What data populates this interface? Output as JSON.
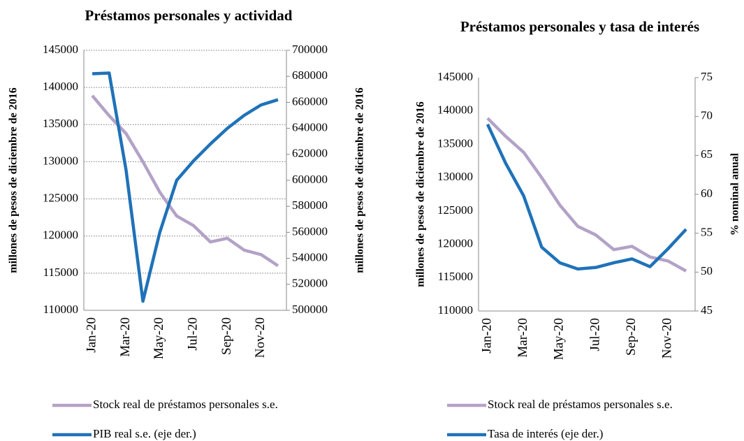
{
  "chart_data": [
    {
      "type": "line",
      "title": "Préstamos personales y actividad",
      "categories": [
        "Jan-20",
        null,
        "Mar-20",
        null,
        "May-20",
        null,
        "Jul-20",
        null,
        "Sep-20",
        null,
        "Nov-20",
        null
      ],
      "series": [
        {
          "name": "Stock real de préstamos personales s.e.",
          "color": "#b3a2c7",
          "axis": "y",
          "values": [
            138900,
            136200,
            133800,
            130000,
            125900,
            122700,
            121400,
            119200,
            119700,
            118100,
            117500,
            116000
          ]
        },
        {
          "name": "PIB real s.e. (eje der.)",
          "color": "#1f72b8",
          "axis": "y2",
          "values": [
            682000,
            682500,
            608000,
            507000,
            560000,
            600000,
            615000,
            628000,
            640000,
            650000,
            658000,
            662000
          ]
        }
      ],
      "ylabel": "millones de pesos de diciembre de 2016",
      "y2label": "millones de pesos de diciembre de 2016",
      "ylim": [
        110000,
        145000
      ],
      "yticks": [
        110000,
        115000,
        120000,
        125000,
        130000,
        135000,
        140000,
        145000
      ],
      "y2lim": [
        500000,
        700000
      ],
      "y2ticks": [
        500000,
        520000,
        540000,
        560000,
        580000,
        600000,
        620000,
        640000,
        660000,
        680000,
        700000
      ],
      "grid": true,
      "legend": "bottom"
    },
    {
      "type": "line",
      "title": "Préstamos personales y tasa de interés",
      "categories": [
        "Jan-20",
        null,
        "Mar-20",
        null,
        "May-20",
        null,
        "Jul-20",
        null,
        "Sep-20",
        null,
        "Nov-20",
        null
      ],
      "series": [
        {
          "name": "Stock real de préstamos personales s.e.",
          "color": "#b3a2c7",
          "axis": "y",
          "values": [
            138900,
            136200,
            133800,
            130000,
            125900,
            122700,
            121400,
            119200,
            119700,
            118100,
            117500,
            116000
          ]
        },
        {
          "name": "Tasa de interés (eje der.)",
          "color": "#1f72b8",
          "axis": "y2",
          "values": [
            69,
            64,
            59.8,
            53.2,
            51.2,
            50.4,
            50.6,
            51.2,
            51.7,
            50.7,
            53,
            55.5
          ]
        }
      ],
      "ylabel": "millones de pesos de diciembre de 2016",
      "y2label": "% nominal anual",
      "ylim": [
        110000,
        145000
      ],
      "yticks": [
        110000,
        115000,
        120000,
        125000,
        130000,
        135000,
        140000,
        145000
      ],
      "y2lim": [
        45,
        75
      ],
      "y2ticks": [
        45,
        50,
        55,
        60,
        65,
        70,
        75
      ],
      "grid": false,
      "legend": "bottom"
    }
  ]
}
